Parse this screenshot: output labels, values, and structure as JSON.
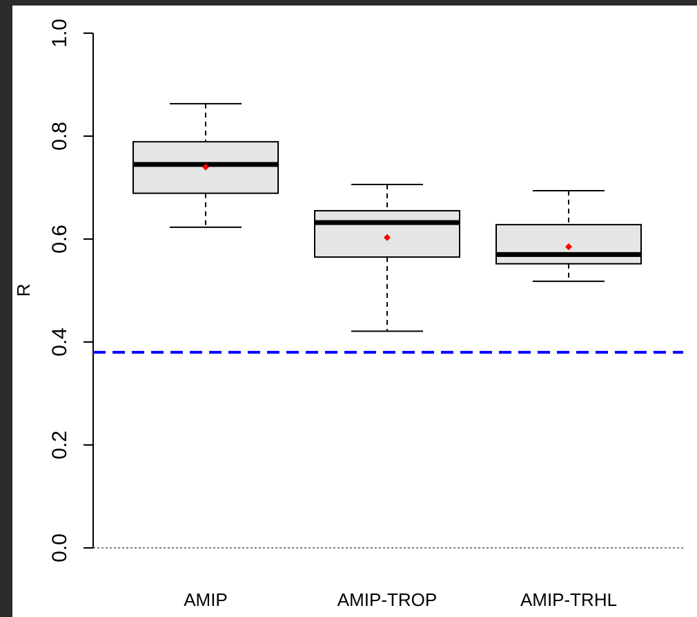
{
  "chart_data": {
    "type": "box",
    "y_label": "R",
    "categories": [
      "AMIP",
      "AMIP-TROP",
      "AMIP-TRHL"
    ],
    "boxes": [
      {
        "min": 0.623,
        "q1": 0.689,
        "median": 0.745,
        "q3": 0.789,
        "max": 0.863,
        "mean": 0.74
      },
      {
        "min": 0.421,
        "q1": 0.565,
        "median": 0.632,
        "q3": 0.655,
        "max": 0.706,
        "mean": 0.603
      },
      {
        "min": 0.518,
        "q1": 0.552,
        "median": 0.57,
        "q3": 0.628,
        "max": 0.694,
        "mean": 0.585
      }
    ],
    "box_color": "#e5e5e5",
    "mean_color": "#ff0000",
    "ylim": [
      0,
      1
    ],
    "yticks": [
      {
        "value": 0,
        "label": "0.0"
      },
      {
        "value": 0.2,
        "label": "0.2"
      },
      {
        "value": 0.4,
        "label": "0.4"
      },
      {
        "value": 0.6,
        "label": "0.6"
      },
      {
        "value": 0.8,
        "label": "0.8"
      },
      {
        "value": 1,
        "label": "1.0"
      }
    ],
    "reference_lines": [
      {
        "value": 0.38,
        "color": "#0000ff",
        "style": "dashed"
      },
      {
        "value": 0,
        "color": "#000000",
        "style": "dotted"
      }
    ]
  }
}
